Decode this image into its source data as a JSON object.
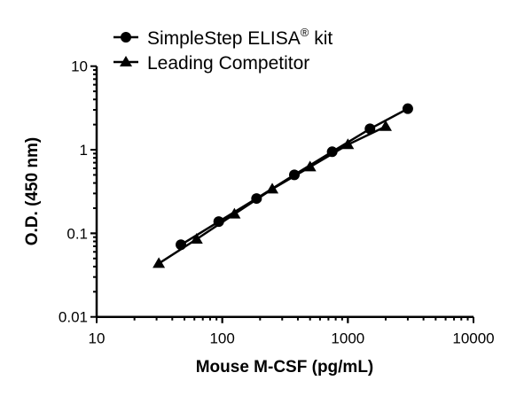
{
  "chart_data": {
    "type": "scatter",
    "title": "",
    "xlabel": "Mouse M-CSF (pg/mL)",
    "ylabel": "O.D. (450 nm)",
    "xscale": "log",
    "yscale": "log",
    "xlim": [
      10,
      10000
    ],
    "ylim": [
      0.01,
      10
    ],
    "xticks": [
      "10",
      "100",
      "1000",
      "10000"
    ],
    "yticks": [
      "0.01",
      "0.1",
      "1",
      "10"
    ],
    "grid": false,
    "legend_position": "top-left",
    "series": [
      {
        "name": "SimpleStep ELISA® kit",
        "marker": "circle",
        "color": "#000000",
        "x": [
          46.875,
          93.75,
          187.5,
          375,
          750,
          1500,
          3000
        ],
        "y": [
          0.073,
          0.138,
          0.261,
          0.501,
          0.946,
          1.78,
          3.1
        ]
      },
      {
        "name": "Leading Competitor",
        "marker": "triangle",
        "color": "#000000",
        "x": [
          31.25,
          62.5,
          125,
          250,
          500,
          1000,
          2000
        ],
        "y": [
          0.0436,
          0.085,
          0.17,
          0.339,
          0.624,
          1.15,
          1.9
        ]
      }
    ]
  },
  "legend": {
    "item1_main": "SimpleStep ELISA",
    "item1_sup": "®",
    "item1_tail": " kit",
    "item2": "Leading Competitor"
  }
}
